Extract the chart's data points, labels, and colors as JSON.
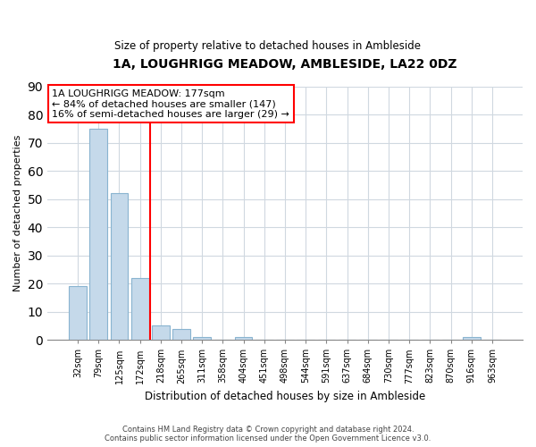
{
  "title": "1A, LOUGHRIGG MEADOW, AMBLESIDE, LA22 0DZ",
  "subtitle": "Size of property relative to detached houses in Ambleside",
  "xlabel": "Distribution of detached houses by size in Ambleside",
  "ylabel": "Number of detached properties",
  "bar_labels": [
    "32sqm",
    "79sqm",
    "125sqm",
    "172sqm",
    "218sqm",
    "265sqm",
    "311sqm",
    "358sqm",
    "404sqm",
    "451sqm",
    "498sqm",
    "544sqm",
    "591sqm",
    "637sqm",
    "684sqm",
    "730sqm",
    "777sqm",
    "823sqm",
    "870sqm",
    "916sqm",
    "963sqm"
  ],
  "bar_values": [
    19,
    75,
    52,
    22,
    5,
    4,
    1,
    0,
    1,
    0,
    0,
    0,
    0,
    0,
    0,
    0,
    0,
    0,
    0,
    1,
    0
  ],
  "bar_color": "#c5d9ea",
  "bar_edge_color": "#89b4d0",
  "ylim": [
    0,
    90
  ],
  "yticks": [
    0,
    10,
    20,
    30,
    40,
    50,
    60,
    70,
    80,
    90
  ],
  "annotation_line1": "1A LOUGHRIGG MEADOW: 177sqm",
  "annotation_line2": "← 84% of detached houses are smaller (147)",
  "annotation_line3": "16% of semi-detached houses are larger (29) →",
  "annotation_box_facecolor": "white",
  "annotation_box_edgecolor": "red",
  "vline_color": "red",
  "vline_x": 3.47,
  "footer_line1": "Contains HM Land Registry data © Crown copyright and database right 2024.",
  "footer_line2": "Contains public sector information licensed under the Open Government Licence v3.0.",
  "background_color": "#ffffff",
  "plot_bg_color": "#ffffff",
  "grid_color": "#d0d8e0",
  "title_fontsize": 10,
  "subtitle_fontsize": 8.5
}
